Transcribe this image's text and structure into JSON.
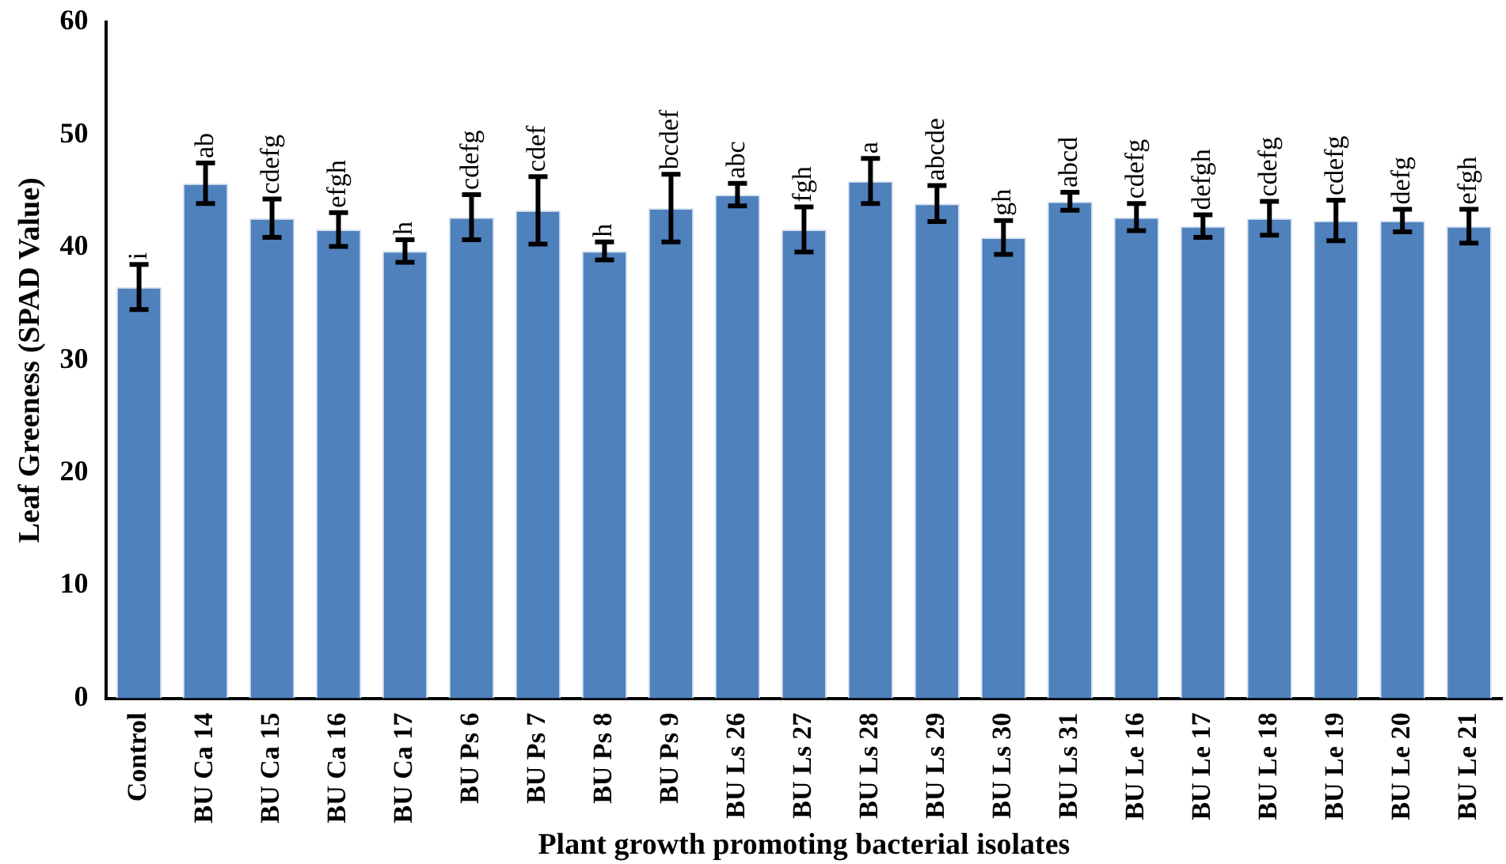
{
  "chart_data": {
    "type": "bar",
    "xlabel": "Plant growth promoting bacterial isolates",
    "ylabel": "Leaf Greeness (SPAD Value)",
    "categories": [
      "Control",
      "BU Ca 14",
      "BU Ca 15",
      "BU Ca 16",
      "BU Ca 17",
      "BU Ps 6",
      "BU Ps 7",
      "BU Ps 8",
      "BU Ps 9",
      "BU Ls 26",
      "BU Ls 27",
      "BU Ls 28",
      "BU Ls 29",
      "BU Ls 30",
      "BU Ls 31",
      "BU Le 16",
      "BU Le 17",
      "BU Le 18",
      "BU Le 19",
      "BU Le 20",
      "BU Le 21"
    ],
    "values": [
      36.5,
      45.7,
      42.6,
      41.6,
      39.7,
      42.7,
      43.3,
      39.7,
      43.5,
      44.7,
      41.6,
      45.9,
      43.9,
      40.9,
      44.1,
      42.7,
      41.9,
      42.6,
      42.4,
      42.4,
      41.9
    ],
    "errors": [
      2,
      1.8,
      1.7,
      1.5,
      1,
      2,
      3,
      0.8,
      3,
      1,
      2,
      2,
      1.6,
      1.5,
      0.8,
      1.2,
      1,
      1.5,
      1.8,
      1,
      1.5
    ],
    "value_labels": [
      "i",
      "ab",
      "cdefg",
      "efgh",
      "h",
      "cdefg",
      "cdef",
      "h",
      "bcdef",
      "abc",
      "fgh",
      "a",
      "abcde",
      "gh",
      "abcd",
      "cdefg",
      "defgh",
      "cdefg",
      "cdefg",
      "defg",
      "efgh"
    ],
    "color": "#4f81bd",
    "ylim": [
      0,
      60
    ],
    "yticks": [
      0,
      10,
      20,
      30,
      40,
      50,
      60
    ],
    "grid": false,
    "legend": false
  }
}
